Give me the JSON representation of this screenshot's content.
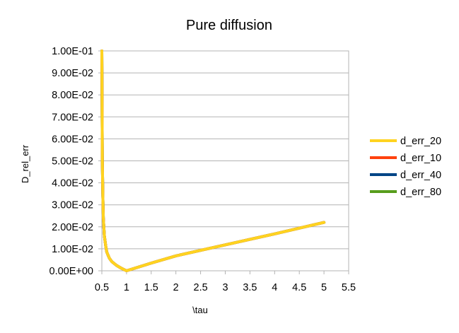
{
  "chart_data": {
    "type": "scatter",
    "title": "Pure diffusion",
    "xlabel": "\\tau",
    "ylabel": "D_rel_err",
    "xlim": [
      0.5,
      5.5
    ],
    "ylim": [
      0,
      0.1
    ],
    "x_ticks": [
      "0.5",
      "1",
      "1.5",
      "2",
      "2.5",
      "3",
      "3.5",
      "4",
      "4.5",
      "5",
      "5.5"
    ],
    "y_ticks": [
      "0.00E+00",
      "1.00E-02",
      "2.00E-02",
      "3.00E-02",
      "4.00E-02",
      "5.00E-02",
      "6.00E-02",
      "7.00E-02",
      "8.00E-02",
      "9.00E-02",
      "1.00E-01"
    ],
    "grid": true,
    "legend_position": "right",
    "series": [
      {
        "name": "d_err_20",
        "color": "#ffd320",
        "x": [
          0.5,
          0.51,
          0.52,
          0.53,
          0.55,
          0.58,
          0.6,
          0.65,
          0.7,
          0.8,
          0.9,
          1.0,
          1.5,
          2.0,
          3.0,
          4.0,
          5.0
        ],
        "y": [
          0.1,
          0.05,
          0.034,
          0.024,
          0.016,
          0.011,
          0.0085,
          0.0058,
          0.0042,
          0.0024,
          0.0011,
          0.0,
          0.0035,
          0.0068,
          0.0118,
          0.0168,
          0.022
        ]
      },
      {
        "name": "d_err_10",
        "color": "#ff420e",
        "x": [
          0.5,
          0.51,
          0.52,
          0.53,
          0.55,
          0.58,
          0.6,
          0.65,
          0.7,
          0.8,
          0.9,
          1.0,
          1.5,
          2.0,
          3.0,
          4.0,
          5.0
        ],
        "y": [
          0.1,
          0.05,
          0.034,
          0.024,
          0.016,
          0.011,
          0.0085,
          0.0058,
          0.0042,
          0.0024,
          0.0011,
          0.0,
          0.0035,
          0.0068,
          0.0118,
          0.0168,
          0.022
        ]
      },
      {
        "name": "d_err_40",
        "color": "#004586",
        "x": [
          0.5,
          0.51,
          0.52,
          0.53,
          0.55,
          0.58,
          0.6,
          0.65,
          0.7,
          0.8,
          0.9,
          1.0,
          1.5,
          2.0,
          3.0,
          4.0,
          5.0
        ],
        "y": [
          0.1,
          0.05,
          0.034,
          0.024,
          0.016,
          0.011,
          0.0085,
          0.0058,
          0.0042,
          0.0024,
          0.0011,
          0.0,
          0.0035,
          0.0068,
          0.0118,
          0.0168,
          0.022
        ]
      },
      {
        "name": "d_err_80",
        "color": "#579d1c",
        "x": [
          0.5,
          0.51,
          0.52,
          0.53,
          0.55,
          0.58,
          0.6,
          0.65,
          0.7,
          0.8,
          0.9,
          1.0,
          1.5,
          2.0,
          3.0,
          4.0,
          5.0
        ],
        "y": [
          0.1,
          0.05,
          0.034,
          0.024,
          0.016,
          0.011,
          0.0085,
          0.0058,
          0.0042,
          0.0024,
          0.0011,
          0.0,
          0.0035,
          0.0068,
          0.0118,
          0.0168,
          0.022
        ]
      }
    ]
  }
}
